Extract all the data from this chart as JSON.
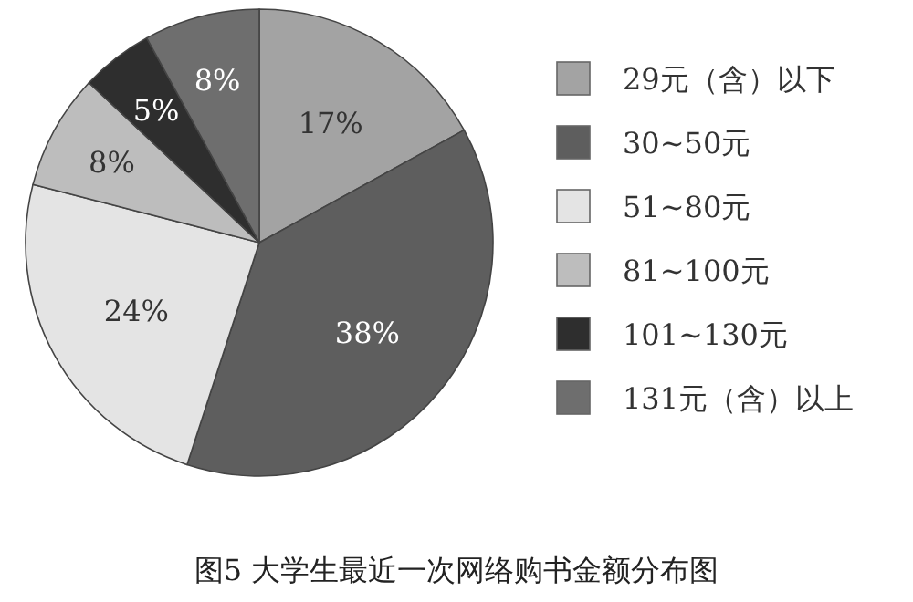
{
  "chart_data": {
    "type": "pie",
    "title": "图5  大学生最近一次网络购书金额分布图",
    "categories": [
      "29元（含）以下",
      "30~50元",
      "51~80元",
      "81~100元",
      "101~130元",
      "131元（含）以上"
    ],
    "values": [
      17,
      38,
      24,
      8,
      5,
      8
    ],
    "colors": [
      "#a3a3a3",
      "#5e5e5e",
      "#e4e4e4",
      "#bdbdbd",
      "#2e2e2e",
      "#6e6e6e"
    ],
    "value_labels": [
      "17%",
      "38%",
      "24%",
      "8%",
      "5%",
      "8%"
    ],
    "legend": "right"
  }
}
